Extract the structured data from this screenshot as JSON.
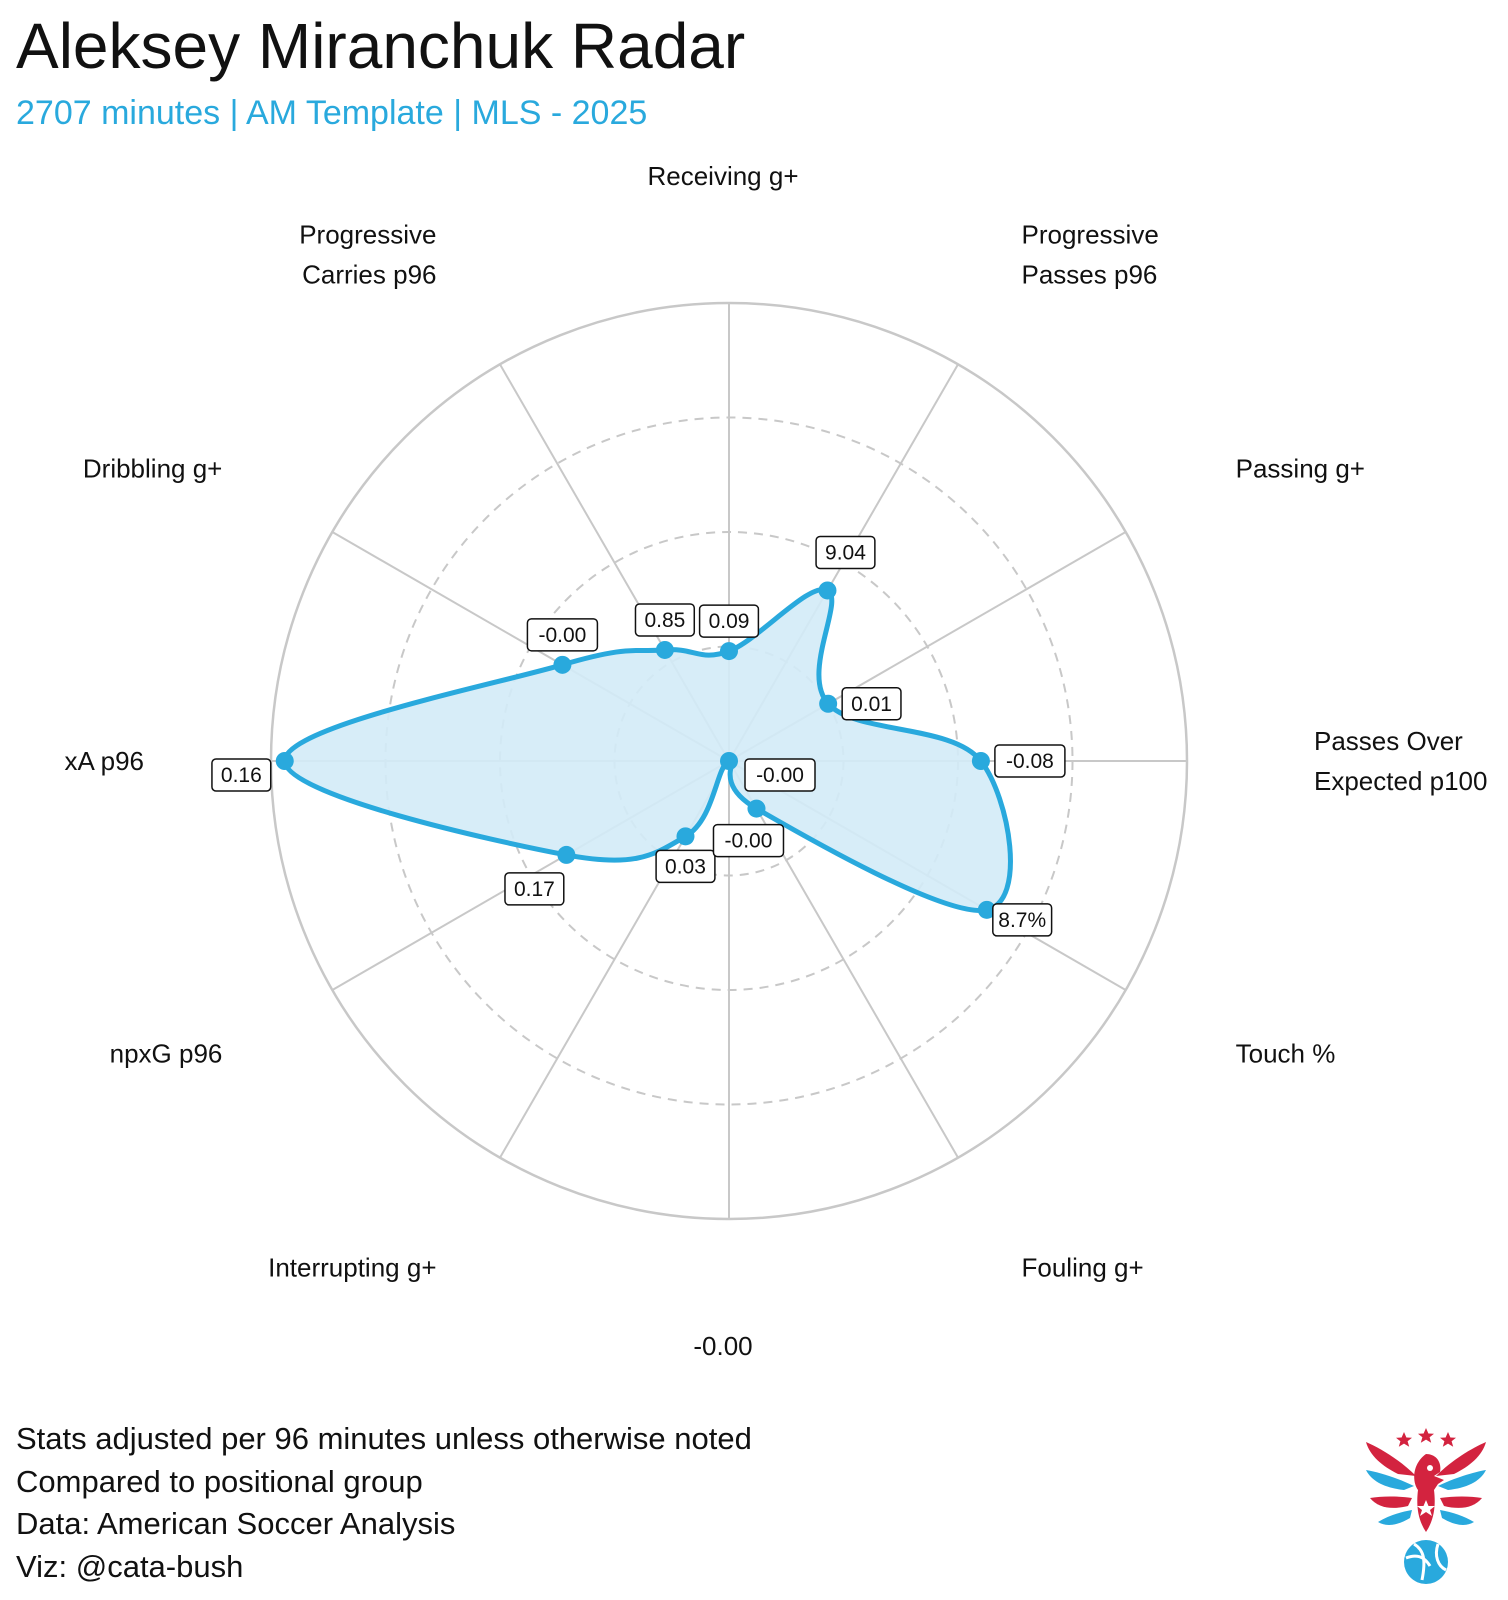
{
  "title": "Aleksey Miranchuk Radar",
  "subtitle": "2707 minutes | AM Template | MLS - 2025",
  "captions": [
    "Stats adjusted per 96 minutes unless otherwise noted",
    "Compared to positional group",
    "Data: American Soccer Analysis",
    "Viz: @cata-bush"
  ],
  "colors": {
    "accent": "#29a9dd",
    "fill": "#d3ebf7",
    "grid": "#c8c8c8",
    "logo_red": "#d3233f",
    "logo_blue": "#29a9dd"
  },
  "logo": {
    "icon": "eagle-soccer-ball-logo"
  },
  "chart_data": {
    "type": "radar",
    "title": "Aleksey Miranchuk Radar",
    "subtitle": "2707 minutes | AM Template | MLS - 2025",
    "rlim": [
      0,
      1
    ],
    "grid_rings": [
      0.25,
      0.5,
      0.75,
      1.0
    ],
    "grid": true,
    "axes": [
      {
        "label_lines": [
          "Passes Over",
          "Expected p100"
        ],
        "value_label": "-0.08",
        "percentile": 0.55
      },
      {
        "label_lines": [
          "Passing g+"
        ],
        "value_label": "0.01",
        "percentile": 0.25
      },
      {
        "label_lines": [
          "Progressive",
          "Passes p96"
        ],
        "value_label": "9.04",
        "percentile": 0.43
      },
      {
        "label_lines": [
          "Receiving g+"
        ],
        "value_label": "0.09",
        "percentile": 0.24
      },
      {
        "label_lines": [
          "Progressive",
          "Carries p96"
        ],
        "value_label": "0.85",
        "percentile": 0.28
      },
      {
        "label_lines": [
          "Dribbling g+"
        ],
        "value_label": "-0.00",
        "percentile": 0.42
      },
      {
        "label_lines": [
          "xA p96"
        ],
        "value_label": "0.16",
        "percentile": 0.97
      },
      {
        "label_lines": [
          "npxG p96"
        ],
        "value_label": "0.17",
        "percentile": 0.41
      },
      {
        "label_lines": [
          "Interrupting g+"
        ],
        "value_label": "0.03",
        "percentile": 0.19
      },
      {
        "label_lines": [
          "-0.00"
        ],
        "value_label": "-0.00",
        "percentile": 0.0
      },
      {
        "label_lines": [
          "Fouling g+"
        ],
        "value_label": "-0.00",
        "percentile": 0.12
      },
      {
        "label_lines": [
          "Touch %"
        ],
        "value_label": "8.7%",
        "percentile": 0.65
      }
    ]
  }
}
